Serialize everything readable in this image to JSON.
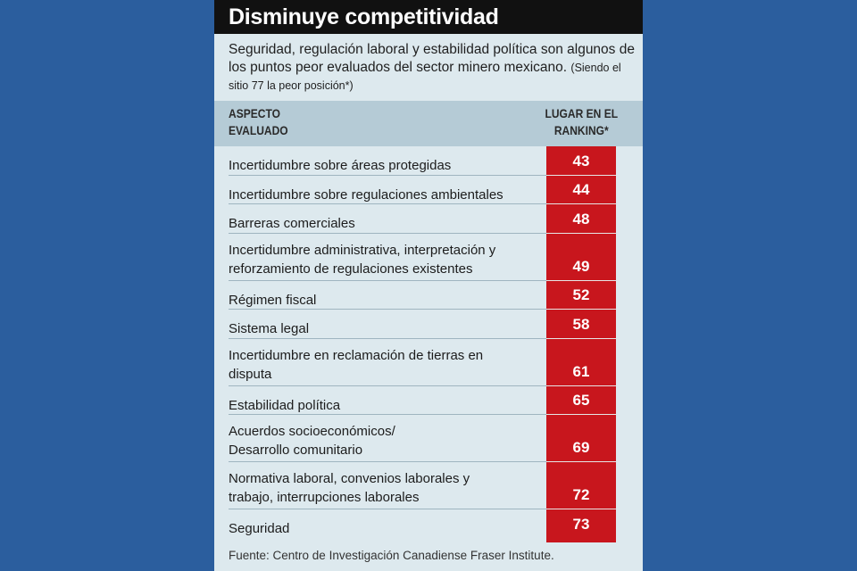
{
  "title": "Disminuye competitividad",
  "intro": {
    "text": "Seguridad, regulación laboral y estabilidad política son algunos de los puntos peor evaluados del sector minero mexicano. ",
    "note": "(Siendo el sitio 77 la peor posición*)"
  },
  "headers": {
    "aspect": "ASPECTO EVALUADO",
    "rank": "LUGAR EN EL RANKING*"
  },
  "source": "Fuente: Centro de Investigación Canadiense Fraser Institute.",
  "colors": {
    "background": "#2b5e9e",
    "panel": "#dde9ee",
    "header_band": "#b5cbd6",
    "title_bar": "#111111",
    "rank_column": "#c8161d"
  },
  "chart_data": {
    "type": "table",
    "columns": [
      "ASPECTO EVALUADO",
      "LUGAR EN EL RANKING*"
    ],
    "rows": [
      {
        "aspect": "Incertidumbre sobre áreas protegidas",
        "rank": 43
      },
      {
        "aspect": "Incertidumbre  sobre regulaciones ambientales",
        "rank": 44
      },
      {
        "aspect": "Barreras comerciales",
        "rank": 48
      },
      {
        "aspect": "Incertidumbre administrativa, interpretación y reforzamiento de regulaciones existentes",
        "rank": 49
      },
      {
        "aspect": "Régimen fiscal",
        "rank": 52
      },
      {
        "aspect": "Sistema legal",
        "rank": 58
      },
      {
        "aspect": "Incertidumbre en reclamación de tierras en disputa",
        "rank": 61
      },
      {
        "aspect": "Estabilidad política",
        "rank": 65
      },
      {
        "aspect": "Acuerdos socioeconómicos/ Desarrollo comunitario",
        "rank": 69
      },
      {
        "aspect": "Normativa laboral, convenios laborales y trabajo, interrupciones laborales",
        "rank": 72
      },
      {
        "aspect": "Seguridad",
        "rank": 73
      }
    ]
  }
}
